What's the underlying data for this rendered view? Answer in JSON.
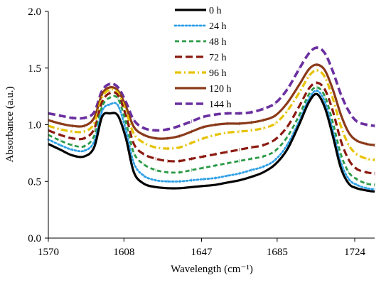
{
  "chart_data": {
    "type": "line",
    "title": "",
    "xlabel": "Wavelength (cm⁻¹)",
    "ylabel": "Absorbance (a.u.)",
    "xlim": [
      1570,
      1734
    ],
    "ylim": [
      0,
      2
    ],
    "x_ticks": [
      1570,
      1608,
      1647,
      1685,
      1724
    ],
    "y_ticks": [
      "0.0",
      "0.5",
      "1.0",
      "1.5",
      "2.0"
    ],
    "grid": false,
    "legend_position": "top-center",
    "x": [
      1570,
      1576,
      1582,
      1588,
      1593,
      1597,
      1601,
      1605,
      1609,
      1613,
      1618,
      1624,
      1630,
      1636,
      1642,
      1648,
      1654,
      1660,
      1666,
      1672,
      1678,
      1684,
      1690,
      1696,
      1701,
      1705,
      1709,
      1713,
      1717,
      1721,
      1725,
      1730,
      1734
    ],
    "series": [
      {
        "name": "0 h",
        "color": "#000000",
        "dash": "solid",
        "width": 3.2,
        "values": [
          0.83,
          0.78,
          0.73,
          0.72,
          0.8,
          1.07,
          1.1,
          1.08,
          0.88,
          0.58,
          0.48,
          0.45,
          0.44,
          0.44,
          0.45,
          0.46,
          0.47,
          0.49,
          0.51,
          0.54,
          0.58,
          0.65,
          0.78,
          1.0,
          1.2,
          1.27,
          1.15,
          0.9,
          0.62,
          0.48,
          0.44,
          0.42,
          0.41
        ]
      },
      {
        "name": "24 h",
        "color": "#2e9fe6",
        "dash": "dot",
        "width": 2.8,
        "values": [
          0.87,
          0.82,
          0.78,
          0.77,
          0.85,
          1.12,
          1.18,
          1.17,
          0.95,
          0.66,
          0.55,
          0.51,
          0.5,
          0.5,
          0.51,
          0.52,
          0.53,
          0.55,
          0.57,
          0.6,
          0.63,
          0.69,
          0.82,
          1.03,
          1.23,
          1.3,
          1.2,
          0.95,
          0.67,
          0.52,
          0.47,
          0.44,
          0.43
        ]
      },
      {
        "name": "48 h",
        "color": "#2b9a46",
        "dash": "dash",
        "width": 2.8,
        "values": [
          0.91,
          0.86,
          0.82,
          0.81,
          0.9,
          1.16,
          1.24,
          1.23,
          1.02,
          0.75,
          0.65,
          0.6,
          0.58,
          0.58,
          0.6,
          0.62,
          0.64,
          0.66,
          0.68,
          0.7,
          0.72,
          0.77,
          0.89,
          1.08,
          1.27,
          1.33,
          1.25,
          1.02,
          0.74,
          0.58,
          0.52,
          0.48,
          0.47
        ]
      },
      {
        "name": "72 h",
        "color": "#8b1a10",
        "dash": "longdash",
        "width": 3.2,
        "values": [
          0.95,
          0.91,
          0.88,
          0.88,
          0.96,
          1.2,
          1.28,
          1.26,
          1.08,
          0.83,
          0.74,
          0.7,
          0.68,
          0.68,
          0.7,
          0.72,
          0.74,
          0.76,
          0.78,
          0.8,
          0.82,
          0.87,
          0.98,
          1.16,
          1.32,
          1.37,
          1.31,
          1.12,
          0.86,
          0.69,
          0.61,
          0.58,
          0.57
        ]
      },
      {
        "name": "96 h",
        "color": "#e6c200",
        "dash": "dashdot",
        "width": 3.2,
        "values": [
          0.99,
          0.96,
          0.94,
          0.94,
          1.01,
          1.24,
          1.31,
          1.28,
          1.12,
          0.92,
          0.84,
          0.8,
          0.79,
          0.8,
          0.84,
          0.88,
          0.91,
          0.93,
          0.94,
          0.95,
          0.97,
          1.01,
          1.12,
          1.28,
          1.43,
          1.48,
          1.42,
          1.23,
          0.99,
          0.82,
          0.74,
          0.7,
          0.69
        ]
      },
      {
        "name": "120 h",
        "color": "#8b3a1a",
        "dash": "solid",
        "width": 3.2,
        "values": [
          1.04,
          1.01,
          0.99,
          0.99,
          1.06,
          1.27,
          1.33,
          1.3,
          1.16,
          0.98,
          0.91,
          0.88,
          0.88,
          0.9,
          0.94,
          0.98,
          1.0,
          1.01,
          1.01,
          1.02,
          1.04,
          1.08,
          1.19,
          1.35,
          1.49,
          1.53,
          1.48,
          1.31,
          1.09,
          0.93,
          0.86,
          0.83,
          0.82
        ]
      },
      {
        "name": "144 h",
        "color": "#6a2fa0",
        "dash": "longdash",
        "width": 3.6,
        "values": [
          1.1,
          1.08,
          1.06,
          1.06,
          1.11,
          1.3,
          1.36,
          1.33,
          1.2,
          1.04,
          0.97,
          0.95,
          0.96,
          0.99,
          1.03,
          1.07,
          1.09,
          1.1,
          1.1,
          1.11,
          1.14,
          1.19,
          1.31,
          1.49,
          1.63,
          1.68,
          1.63,
          1.47,
          1.27,
          1.12,
          1.03,
          1.0,
          0.99
        ]
      }
    ]
  }
}
